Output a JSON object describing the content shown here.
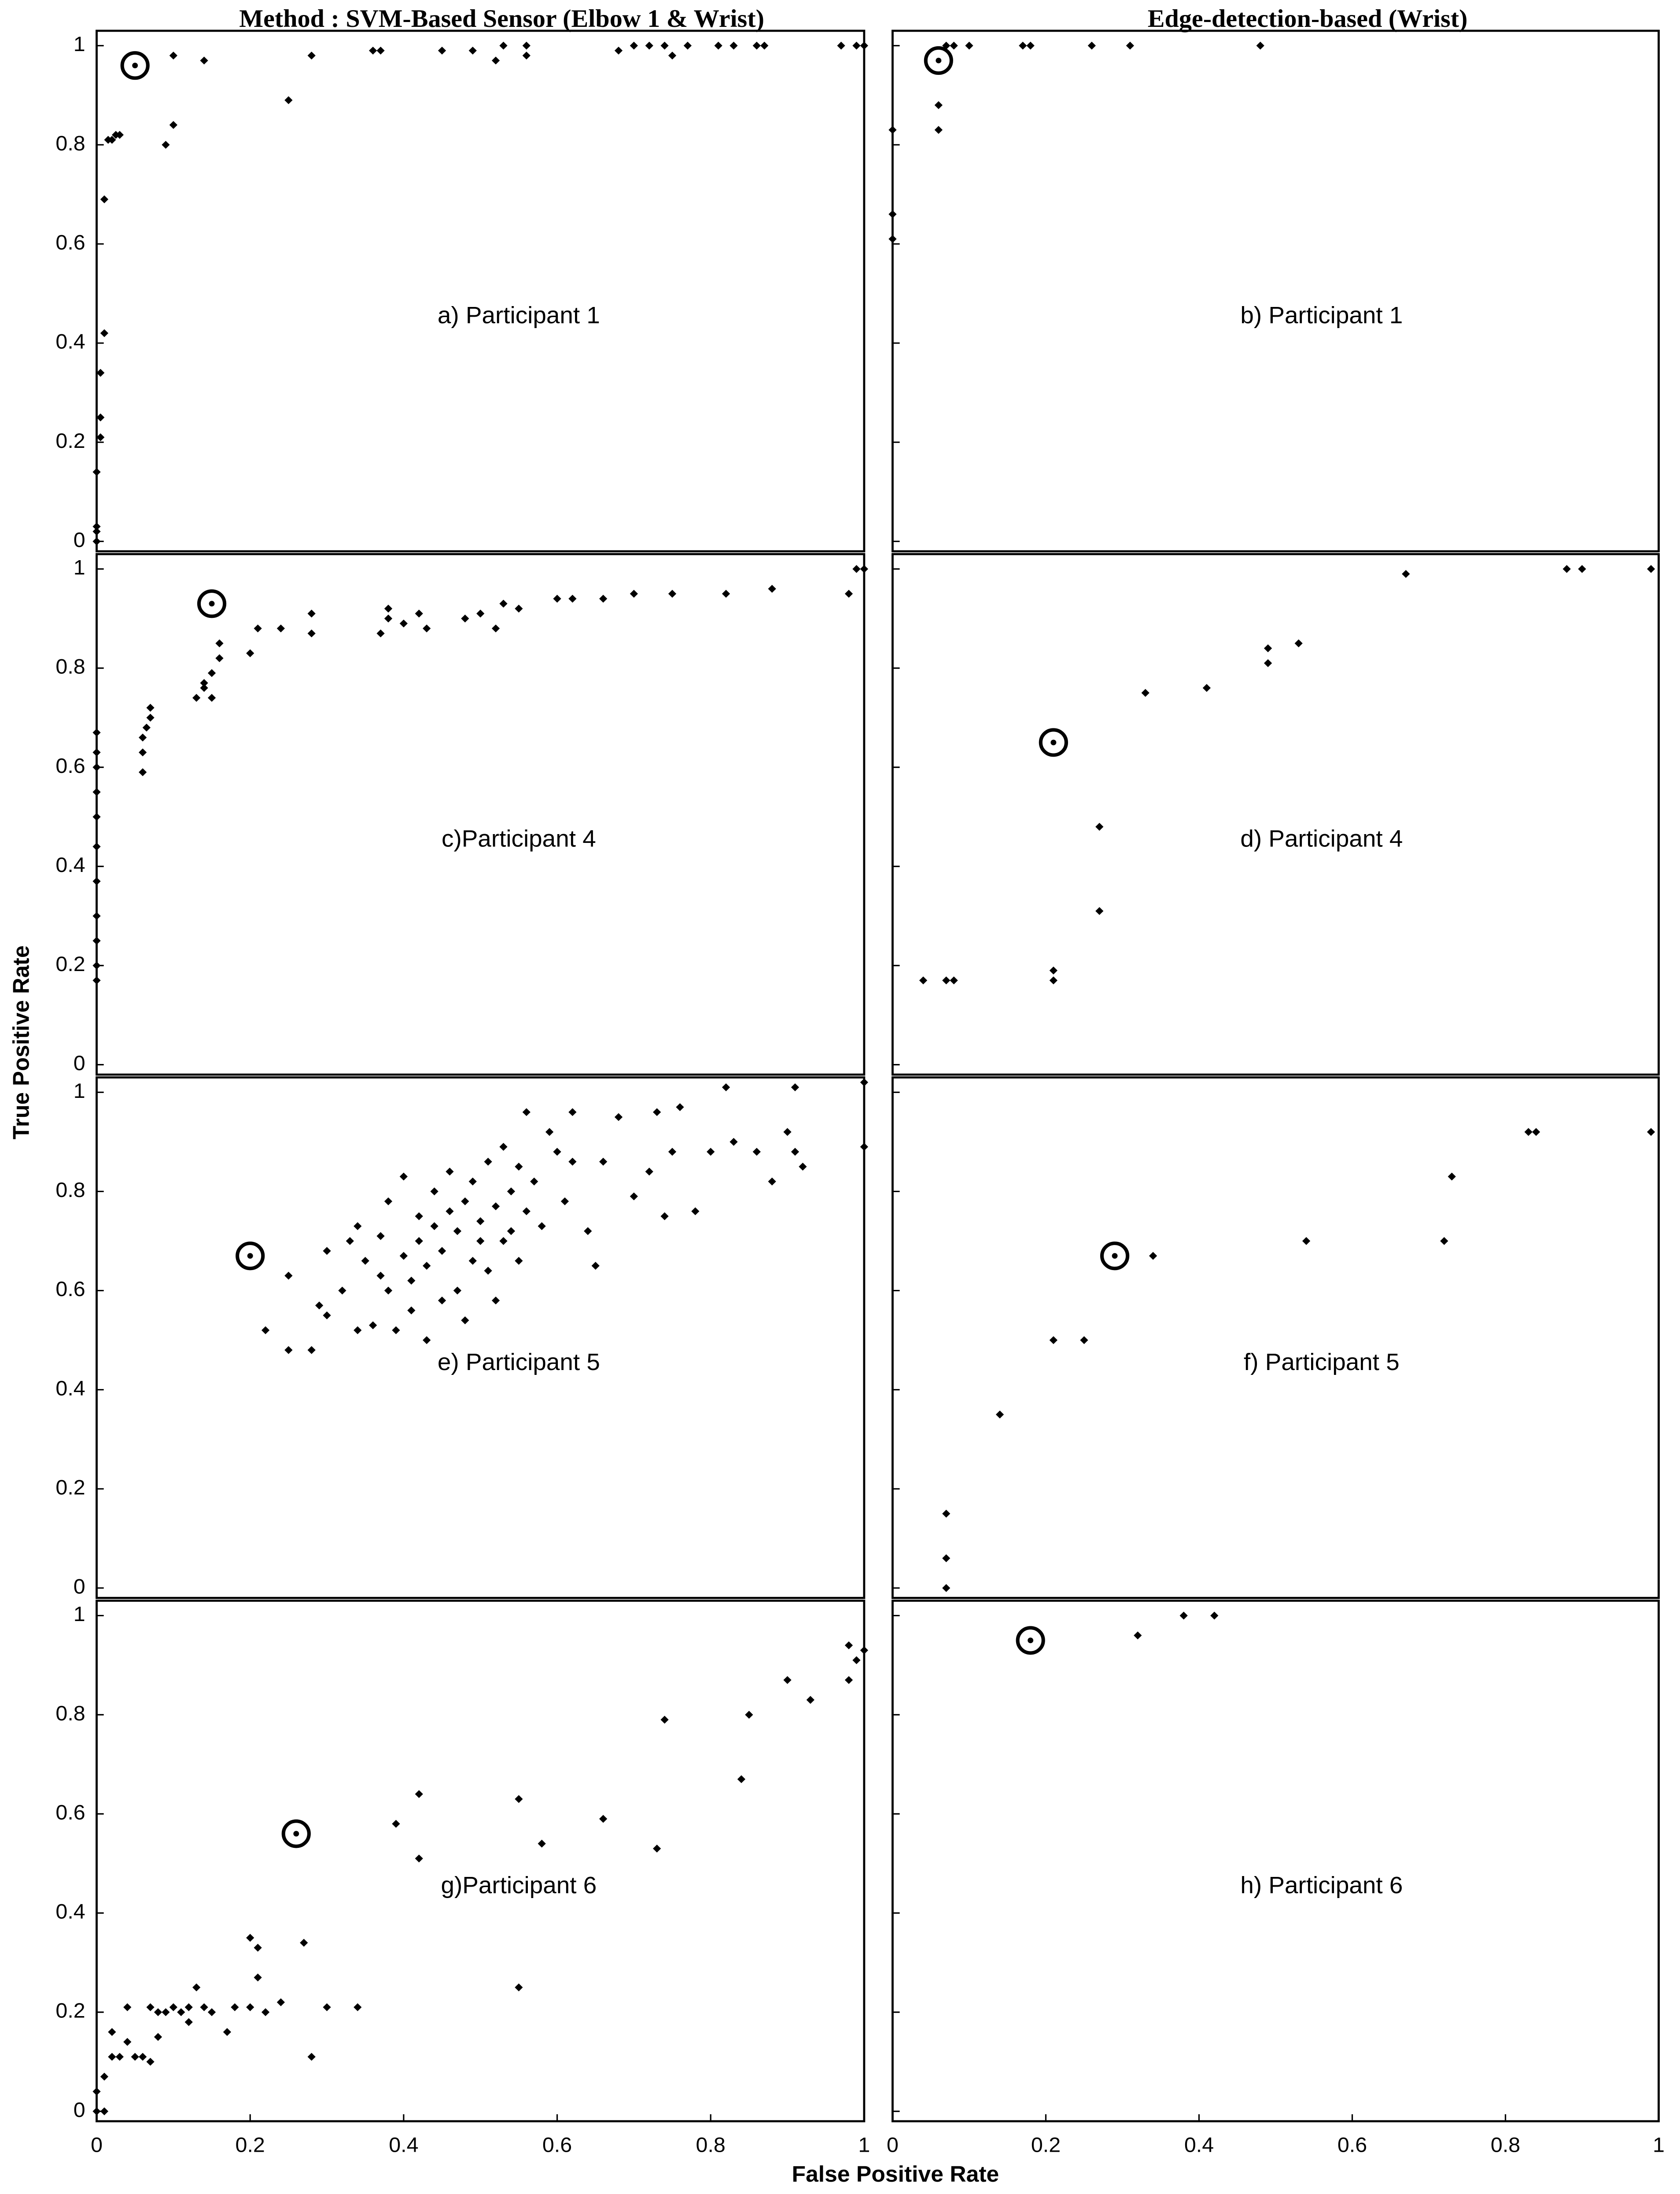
{
  "column_titles": [
    "Method : SVM-Based Sensor (Elbow 1 & Wrist)",
    "Edge-detection-based (Wrist)"
  ],
  "ylabel": "True Positive Rate",
  "xlabel": "False Positive Rate",
  "chart_data": [
    {
      "type": "scatter",
      "annotation": "a) Participant 1",
      "x": [
        0,
        0,
        0,
        0,
        0.005,
        0.005,
        0.005,
        0.01,
        0.01,
        0.015,
        0.02,
        0.025,
        0.03,
        0.09,
        0.1,
        0.1,
        0.14,
        0.25,
        0.28,
        0.36,
        0.37,
        0.45,
        0.49,
        0.52,
        0.53,
        0.56,
        0.56,
        0.68,
        0.7,
        0.72,
        0.74,
        0.75,
        0.77,
        0.81,
        0.83,
        0.86,
        0.87,
        0.97,
        0.99,
        1
      ],
      "y": [
        0,
        0.02,
        0.03,
        0.14,
        0.21,
        0.25,
        0.34,
        0.42,
        0.69,
        0.81,
        0.81,
        0.82,
        0.82,
        0.8,
        0.84,
        0.98,
        0.97,
        0.89,
        0.98,
        0.99,
        0.99,
        0.99,
        0.99,
        0.97,
        1,
        0.98,
        1,
        0.99,
        1,
        1,
        1,
        0.98,
        1,
        1,
        1,
        1,
        1,
        1,
        1,
        1
      ],
      "circled_x": 0.05,
      "circled_y": 0.96,
      "xlim": [
        0,
        1
      ],
      "ylim": [
        -0.02,
        1.03
      ],
      "yticks": [
        0,
        0.2,
        0.4,
        0.6,
        0.8,
        1
      ],
      "ytick_labels": true
    },
    {
      "type": "scatter",
      "annotation": "b) Participant 1",
      "x": [
        0,
        0,
        0,
        0.06,
        0.06,
        0.07,
        0.08,
        0.1,
        0.17,
        0.18,
        0.26,
        0.31,
        0.48
      ],
      "y": [
        0.61,
        0.66,
        0.83,
        0.83,
        0.88,
        1,
        1,
        1,
        1,
        1,
        1,
        1,
        1
      ],
      "circled_x": 0.06,
      "circled_y": 0.97,
      "xlim": [
        0,
        1
      ],
      "ylim": [
        -0.02,
        1.03
      ],
      "yticks": [
        0,
        0.2,
        0.4,
        0.6,
        0.8,
        1
      ],
      "ytick_labels": false
    },
    {
      "type": "scatter",
      "annotation": "c)Participant 4",
      "x": [
        0,
        0,
        0,
        0,
        0,
        0,
        0,
        0,
        0,
        0,
        0,
        0.06,
        0.06,
        0.06,
        0.065,
        0.07,
        0.07,
        0.13,
        0.14,
        0.14,
        0.15,
        0.15,
        0.16,
        0.16,
        0.2,
        0.21,
        0.24,
        0.28,
        0.28,
        0.37,
        0.38,
        0.38,
        0.4,
        0.42,
        0.43,
        0.48,
        0.5,
        0.52,
        0.53,
        0.55,
        0.6,
        0.62,
        0.66,
        0.7,
        0.75,
        0.82,
        0.88,
        0.98,
        0.99,
        1
      ],
      "y": [
        0.17,
        0.2,
        0.25,
        0.3,
        0.37,
        0.44,
        0.5,
        0.55,
        0.6,
        0.63,
        0.67,
        0.59,
        0.63,
        0.66,
        0.68,
        0.7,
        0.72,
        0.74,
        0.77,
        0.76,
        0.79,
        0.74,
        0.82,
        0.85,
        0.83,
        0.88,
        0.88,
        0.87,
        0.91,
        0.87,
        0.9,
        0.92,
        0.89,
        0.91,
        0.88,
        0.9,
        0.91,
        0.88,
        0.93,
        0.92,
        0.94,
        0.94,
        0.94,
        0.95,
        0.95,
        0.95,
        0.96,
        0.95,
        1,
        1
      ],
      "circled_x": 0.15,
      "circled_y": 0.93,
      "xlim": [
        0,
        1
      ],
      "ylim": [
        -0.02,
        1.03
      ],
      "yticks": [
        0,
        0.2,
        0.4,
        0.6,
        0.8,
        1
      ],
      "ytick_labels": true
    },
    {
      "type": "scatter",
      "annotation": "d) Participant 4",
      "x": [
        0.04,
        0.07,
        0.08,
        0.21,
        0.21,
        0.27,
        0.27,
        0.33,
        0.41,
        0.49,
        0.49,
        0.53,
        0.67,
        0.88,
        0.9,
        0.99
      ],
      "y": [
        0.17,
        0.17,
        0.17,
        0.17,
        0.19,
        0.31,
        0.48,
        0.75,
        0.76,
        0.81,
        0.84,
        0.85,
        0.99,
        1,
        1,
        1
      ],
      "circled_x": 0.21,
      "circled_y": 0.65,
      "xlim": [
        0,
        1
      ],
      "ylim": [
        -0.02,
        1.03
      ],
      "yticks": [
        0,
        0.2,
        0.4,
        0.6,
        0.8,
        1
      ],
      "ytick_labels": false
    },
    {
      "type": "scatter",
      "annotation": "e) Participant 5",
      "x": [
        0.22,
        0.25,
        0.25,
        0.28,
        0.29,
        0.3,
        0.3,
        0.32,
        0.33,
        0.34,
        0.34,
        0.35,
        0.36,
        0.37,
        0.37,
        0.38,
        0.38,
        0.39,
        0.4,
        0.4,
        0.41,
        0.41,
        0.42,
        0.42,
        0.43,
        0.43,
        0.44,
        0.44,
        0.45,
        0.45,
        0.46,
        0.46,
        0.47,
        0.47,
        0.48,
        0.48,
        0.49,
        0.49,
        0.5,
        0.5,
        0.51,
        0.51,
        0.52,
        0.52,
        0.53,
        0.53,
        0.54,
        0.54,
        0.55,
        0.55,
        0.56,
        0.56,
        0.57,
        0.58,
        0.59,
        0.6,
        0.61,
        0.62,
        0.62,
        0.64,
        0.65,
        0.66,
        0.68,
        0.7,
        0.72,
        0.73,
        0.74,
        0.75,
        0.76,
        0.78,
        0.8,
        0.82,
        0.83,
        0.86,
        0.88,
        0.9,
        0.91,
        0.91,
        0.92,
        1,
        1
      ],
      "y": [
        0.52,
        0.48,
        0.63,
        0.48,
        0.57,
        0.55,
        0.68,
        0.6,
        0.7,
        0.52,
        0.73,
        0.66,
        0.53,
        0.63,
        0.71,
        0.6,
        0.78,
        0.52,
        0.67,
        0.83,
        0.56,
        0.62,
        0.7,
        0.75,
        0.5,
        0.65,
        0.73,
        0.8,
        0.58,
        0.68,
        0.76,
        0.84,
        0.6,
        0.72,
        0.78,
        0.54,
        0.66,
        0.82,
        0.7,
        0.74,
        0.86,
        0.64,
        0.58,
        0.77,
        0.89,
        0.7,
        0.8,
        0.72,
        0.66,
        0.85,
        0.96,
        0.76,
        0.82,
        0.73,
        0.92,
        0.88,
        0.78,
        0.86,
        0.96,
        0.72,
        0.65,
        0.86,
        0.95,
        0.79,
        0.84,
        0.96,
        0.75,
        0.88,
        0.97,
        0.76,
        0.88,
        1.01,
        0.9,
        0.88,
        0.82,
        0.92,
        1.01,
        0.88,
        0.85,
        1.02,
        0.89
      ],
      "circled_x": 0.2,
      "circled_y": 0.67,
      "xlim": [
        0,
        1
      ],
      "ylim": [
        -0.02,
        1.03
      ],
      "yticks": [
        0,
        0.2,
        0.4,
        0.6,
        0.8,
        1
      ],
      "ytick_labels": true
    },
    {
      "type": "scatter",
      "annotation": "f) Participant 5",
      "x": [
        0.07,
        0.07,
        0.07,
        0.14,
        0.21,
        0.25,
        0.34,
        0.54,
        0.72,
        0.73,
        0.83,
        0.84,
        0.99
      ],
      "y": [
        0,
        0.06,
        0.15,
        0.35,
        0.5,
        0.5,
        0.67,
        0.7,
        0.7,
        0.83,
        0.92,
        0.92,
        0.92
      ],
      "circled_x": 0.29,
      "circled_y": 0.67,
      "xlim": [
        0,
        1
      ],
      "ylim": [
        -0.02,
        1.03
      ],
      "yticks": [
        0,
        0.2,
        0.4,
        0.6,
        0.8,
        1
      ],
      "ytick_labels": false
    },
    {
      "type": "scatter",
      "annotation": "g)Participant 6",
      "x": [
        0,
        0,
        0.01,
        0.01,
        0.02,
        0.02,
        0.03,
        0.04,
        0.04,
        0.05,
        0.06,
        0.07,
        0.07,
        0.08,
        0.08,
        0.09,
        0.1,
        0.11,
        0.12,
        0.12,
        0.13,
        0.14,
        0.15,
        0.17,
        0.18,
        0.2,
        0.2,
        0.21,
        0.21,
        0.22,
        0.24,
        0.27,
        0.28,
        0.3,
        0.34,
        0.39,
        0.42,
        0.42,
        0.55,
        0.55,
        0.58,
        0.66,
        0.73,
        0.74,
        0.84,
        0.85,
        0.9,
        0.93,
        0.98,
        0.98,
        0.99,
        1
      ],
      "y": [
        0,
        0.04,
        0.07,
        0,
        0.11,
        0.16,
        0.11,
        0.14,
        0.21,
        0.11,
        0.11,
        0.1,
        0.21,
        0.2,
        0.15,
        0.2,
        0.21,
        0.2,
        0.21,
        0.18,
        0.25,
        0.21,
        0.2,
        0.16,
        0.21,
        0.21,
        0.35,
        0.27,
        0.33,
        0.2,
        0.22,
        0.34,
        0.11,
        0.21,
        0.21,
        0.58,
        0.51,
        0.64,
        0.25,
        0.63,
        0.54,
        0.59,
        0.53,
        0.79,
        0.67,
        0.8,
        0.87,
        0.83,
        0.87,
        0.94,
        0.91,
        0.93
      ],
      "circled_x": 0.26,
      "circled_y": 0.56,
      "xlim": [
        0,
        1
      ],
      "ylim": [
        -0.02,
        1.03
      ],
      "yticks": [
        0,
        0.2,
        0.4,
        0.6,
        0.8,
        1
      ],
      "ytick_labels": true,
      "xticks": [
        0,
        0.2,
        0.4,
        0.6,
        0.8,
        1
      ]
    },
    {
      "type": "scatter",
      "annotation": "h) Participant 6",
      "x": [
        0.32,
        0.38,
        0.42
      ],
      "y": [
        0.96,
        1.0,
        1.0
      ],
      "circled_x": 0.18,
      "circled_y": 0.95,
      "xlim": [
        0,
        1
      ],
      "ylim": [
        -0.02,
        1.03
      ],
      "yticks": [
        0,
        0.2,
        0.4,
        0.6,
        0.8,
        1
      ],
      "ytick_labels": false,
      "xticks": [
        0,
        0.2,
        0.4,
        0.6,
        0.8,
        1
      ]
    }
  ]
}
